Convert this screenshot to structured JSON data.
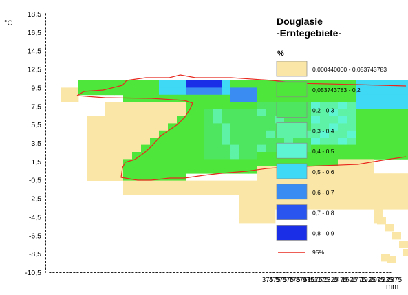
{
  "chart_data": {
    "type": "heatmap",
    "title": "Douglasie",
    "subtitle": "-Erntegebiete-",
    "legend_heading": "%",
    "y_unit": "°C",
    "x_unit": "mm",
    "y_ticks": [
      "18,5",
      "16,5",
      "14,5",
      "12,5",
      "9,5",
      "7,5",
      "5,5",
      "3,5",
      "1,5",
      "-0,5",
      "-2,5",
      "-4,5",
      "-6,5",
      "-8,5",
      "-10,5"
    ],
    "x_ticks": [
      "375",
      "475",
      "575",
      "675",
      "775",
      "875",
      "975",
      "1075",
      "1175",
      "1325",
      "1475",
      "1625",
      "1775",
      "1925",
      "2075",
      "2225",
      "2375"
    ],
    "classes": [
      {
        "label": "0,000440000 - 0,053743783",
        "color": "#fae7a7"
      },
      {
        "label": "0,053743783 - 0,2",
        "color": "#4ee63a"
      },
      {
        "label": "0,2 - 0,3",
        "color": "#4ee660"
      },
      {
        "label": "0,3 - 0,4",
        "color": "#5ef2a6"
      },
      {
        "label": "0,4 - 0,5",
        "color": "#5ef5d2"
      },
      {
        "label": "0,5 - 0,6",
        "color": "#3fd8f5"
      },
      {
        "label": "0,6 - 0,7",
        "color": "#3b8cf2"
      },
      {
        "label": "0,7 - 0,8",
        "color": "#2a55ef"
      },
      {
        "label": "0,8 - 0,9",
        "color": "#1a2ee8"
      }
    ],
    "line_legend": {
      "label": "95%",
      "color": "#e8281e"
    },
    "y_range": [
      -10.5,
      18.5
    ],
    "x_range": [
      375,
      2375
    ],
    "grid": false,
    "legend_position": "right"
  }
}
